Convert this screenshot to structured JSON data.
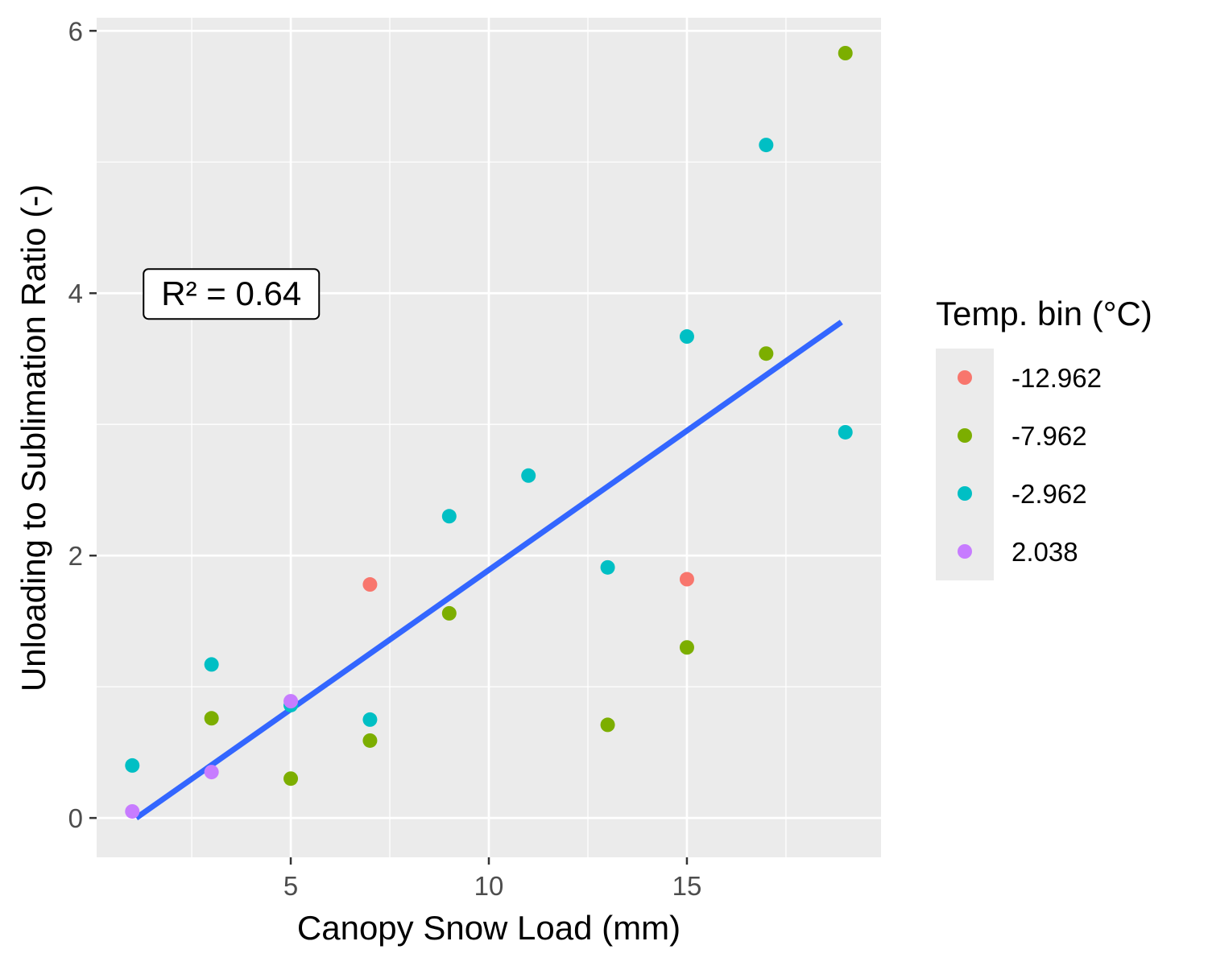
{
  "chart_data": {
    "type": "scatter",
    "title": "",
    "xlabel": "Canopy Snow Load (mm)",
    "ylabel": "Unloading to Sublimation Ratio (-)",
    "xlim": [
      0.1,
      19.9
    ],
    "ylim": [
      -0.3,
      6.1
    ],
    "x_ticks": [
      5,
      10,
      15
    ],
    "x_tick_labels": [
      "5",
      "10",
      "15"
    ],
    "x_minor_ticks": [
      2.5,
      7.5,
      12.5,
      17.5
    ],
    "y_ticks": [
      0,
      2,
      4,
      6
    ],
    "y_tick_labels": [
      "0",
      "2",
      "4",
      "6"
    ],
    "y_minor_ticks": [
      1,
      3,
      5
    ],
    "grid": true,
    "legend": {
      "title": "Temp. bin (°C)",
      "placement": "right"
    },
    "series": [
      {
        "name": "-12.962",
        "color": "#F8766D",
        "points": [
          [
            7,
            1.78
          ],
          [
            15,
            1.82
          ]
        ]
      },
      {
        "name": "-7.962",
        "color": "#7CAE00",
        "points": [
          [
            3,
            0.76
          ],
          [
            5,
            0.3
          ],
          [
            7,
            0.59
          ],
          [
            9,
            1.56
          ],
          [
            13,
            0.71
          ],
          [
            15,
            1.3
          ],
          [
            17,
            3.54
          ],
          [
            19,
            5.83
          ]
        ]
      },
      {
        "name": "-2.962",
        "color": "#00BFC4",
        "points": [
          [
            1,
            0.4
          ],
          [
            3,
            1.17
          ],
          [
            5,
            0.86
          ],
          [
            7,
            0.75
          ],
          [
            9,
            2.3
          ],
          [
            11,
            2.61
          ],
          [
            13,
            1.91
          ],
          [
            15,
            3.67
          ],
          [
            17,
            5.13
          ],
          [
            19,
            2.94
          ]
        ]
      },
      {
        "name": "2.038",
        "color": "#C77CFF",
        "points": [
          [
            1,
            0.05
          ],
          [
            3,
            0.35
          ],
          [
            5,
            0.89
          ]
        ]
      }
    ],
    "fit_line": {
      "color": "#3366FF",
      "x": [
        1.1,
        18.9
      ],
      "y": [
        0.0,
        3.78
      ]
    },
    "annotations": [
      {
        "text": "R² = 0.64",
        "x": 3.5,
        "y": 4.0
      }
    ]
  }
}
